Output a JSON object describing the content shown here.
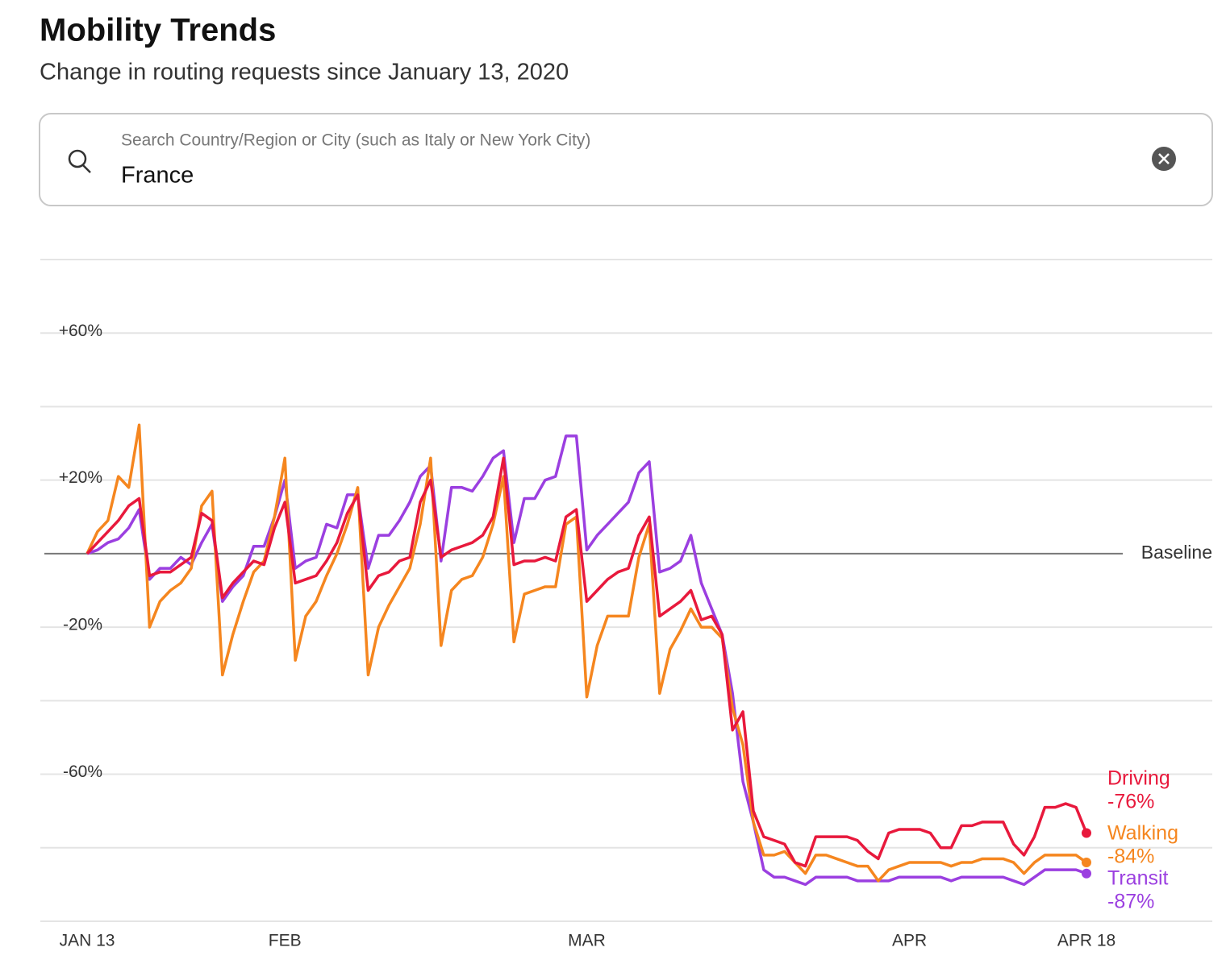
{
  "header": {
    "title": "Mobility Trends",
    "subtitle": "Change in routing requests since January 13, 2020"
  },
  "search": {
    "placeholder": "Search Country/Region or City (such as Italy or New York City)",
    "value": "France"
  },
  "chart_data": {
    "type": "line",
    "x": [
      "Jan 13",
      "Jan 14",
      "Jan 15",
      "Jan 16",
      "Jan 17",
      "Jan 18",
      "Jan 19",
      "Jan 20",
      "Jan 21",
      "Jan 22",
      "Jan 23",
      "Jan 24",
      "Jan 25",
      "Jan 26",
      "Jan 27",
      "Jan 28",
      "Jan 29",
      "Jan 30",
      "Jan 31",
      "Feb 1",
      "Feb 2",
      "Feb 3",
      "Feb 4",
      "Feb 5",
      "Feb 6",
      "Feb 7",
      "Feb 8",
      "Feb 9",
      "Feb 10",
      "Feb 11",
      "Feb 12",
      "Feb 13",
      "Feb 14",
      "Feb 15",
      "Feb 16",
      "Feb 17",
      "Feb 18",
      "Feb 19",
      "Feb 20",
      "Feb 21",
      "Feb 22",
      "Feb 23",
      "Feb 24",
      "Feb 25",
      "Feb 26",
      "Feb 27",
      "Feb 28",
      "Feb 29",
      "Mar 1",
      "Mar 2",
      "Mar 3",
      "Mar 4",
      "Mar 5",
      "Mar 6",
      "Mar 7",
      "Mar 8",
      "Mar 9",
      "Mar 10",
      "Mar 11",
      "Mar 12",
      "Mar 13",
      "Mar 14",
      "Mar 15",
      "Mar 16",
      "Mar 17",
      "Mar 18",
      "Mar 19",
      "Mar 20",
      "Mar 21",
      "Mar 22",
      "Mar 23",
      "Mar 24",
      "Mar 25",
      "Mar 26",
      "Mar 27",
      "Mar 28",
      "Mar 29",
      "Mar 30",
      "Mar 31",
      "Apr 1",
      "Apr 2",
      "Apr 3",
      "Apr 4",
      "Apr 5",
      "Apr 6",
      "Apr 7",
      "Apr 8",
      "Apr 9",
      "Apr 10",
      "Apr 11",
      "Apr 12",
      "Apr 13",
      "Apr 14",
      "Apr 15",
      "Apr 16",
      "Apr 17",
      "Apr 18"
    ],
    "xticks": [
      {
        "value": "Jan 13",
        "label": "JAN 13"
      },
      {
        "value": "Feb 1",
        "label": "FEB"
      },
      {
        "value": "Mar 1",
        "label": "MAR"
      },
      {
        "value": "Apr 1",
        "label": "APR"
      },
      {
        "value": "Apr 18",
        "label": "APR 18"
      }
    ],
    "ylim": [
      -100,
      80
    ],
    "yticks": [
      {
        "value": 80,
        "label": null
      },
      {
        "value": 60,
        "label": "+60%"
      },
      {
        "value": 40,
        "label": null
      },
      {
        "value": 20,
        "label": "+20%"
      },
      {
        "value": 0,
        "label": "Baseline"
      },
      {
        "value": -20,
        "label": "-20%"
      },
      {
        "value": -40,
        "label": null
      },
      {
        "value": -60,
        "label": "-60%"
      },
      {
        "value": -80,
        "label": null
      },
      {
        "value": -100,
        "label": null
      }
    ],
    "grid": true,
    "series": [
      {
        "name": "Driving",
        "color": "#e8193c",
        "end_label": "-76%",
        "values": [
          0,
          3,
          6,
          9,
          13,
          15,
          -6,
          -5,
          -5,
          -3,
          -1,
          11,
          9,
          -12,
          -8,
          -5,
          -2,
          -3,
          7,
          14,
          -8,
          -7,
          -6,
          -2,
          3,
          11,
          16,
          -10,
          -6,
          -5,
          -2,
          -1,
          14,
          20,
          -1,
          1,
          2,
          3,
          5,
          10,
          26,
          -3,
          -2,
          -2,
          -1,
          -2,
          10,
          12,
          -13,
          -10,
          -7,
          -5,
          -4,
          5,
          10,
          -17,
          -15,
          -13,
          -10,
          -18,
          -17,
          -22,
          -48,
          -43,
          -70,
          -77,
          -78,
          -79,
          -84,
          -85,
          -77,
          -77,
          -77,
          -77,
          -78,
          -81,
          -83,
          -76,
          -75,
          -75,
          -75,
          -76,
          -80,
          -80,
          -74,
          -74,
          -73,
          -73,
          -73,
          -79,
          -82,
          -77,
          -69,
          -69,
          -68,
          -69,
          -76
        ]
      },
      {
        "name": "Walking",
        "color": "#f5861f",
        "end_label": "-84%",
        "values": [
          0,
          6,
          9,
          21,
          18,
          35,
          -20,
          -13,
          -10,
          -8,
          -4,
          13,
          17,
          -33,
          -22,
          -13,
          -5,
          -2,
          10,
          26,
          -29,
          -17,
          -13,
          -6,
          0,
          8,
          18,
          -33,
          -20,
          -14,
          -9,
          -4,
          8,
          26,
          -25,
          -10,
          -7,
          -6,
          -1,
          8,
          21,
          -24,
          -11,
          -10,
          -9,
          -9,
          8,
          10,
          -39,
          -25,
          -17,
          -17,
          -17,
          -1,
          8,
          -38,
          -26,
          -21,
          -15,
          -20,
          -20,
          -23,
          -42,
          -52,
          -73,
          -82,
          -82,
          -81,
          -84,
          -87,
          -82,
          -82,
          -83,
          -84,
          -85,
          -85,
          -89,
          -86,
          -85,
          -84,
          -84,
          -84,
          -84,
          -85,
          -84,
          -84,
          -83,
          -83,
          -83,
          -84,
          -87,
          -84,
          -82,
          -82,
          -82,
          -82,
          -84
        ]
      },
      {
        "name": "Transit",
        "color": "#9b3fe0",
        "end_label": "-87%",
        "values": [
          0,
          1,
          3,
          4,
          7,
          12,
          -7,
          -4,
          -4,
          -1,
          -3,
          3,
          8,
          -13,
          -9,
          -6,
          2,
          2,
          10,
          20,
          -4,
          -2,
          -1,
          8,
          7,
          16,
          16,
          -4,
          5,
          5,
          9,
          14,
          21,
          24,
          -2,
          18,
          18,
          17,
          21,
          26,
          28,
          3,
          15,
          15,
          20,
          21,
          32,
          32,
          1,
          5,
          8,
          11,
          14,
          22,
          25,
          -5,
          -4,
          -2,
          5,
          -8,
          -15,
          -22,
          -38,
          -62,
          -73,
          -86,
          -88,
          -88,
          -89,
          -90,
          -88,
          -88,
          -88,
          -88,
          -89,
          -89,
          -89,
          -89,
          -88,
          -88,
          -88,
          -88,
          -88,
          -89,
          -88,
          -88,
          -88,
          -88,
          -88,
          -89,
          -90,
          -88,
          -86,
          -86,
          -86,
          -86,
          -87
        ]
      }
    ]
  }
}
